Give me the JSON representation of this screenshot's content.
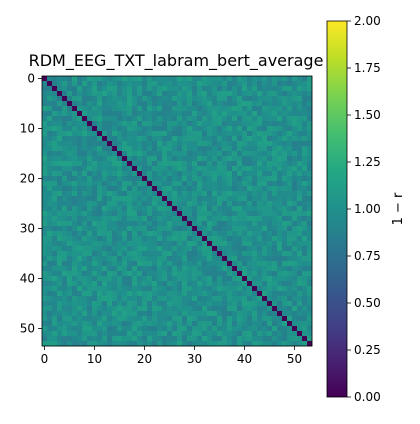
{
  "chart_data": {
    "type": "heatmap",
    "title": "RDM_EEG_TXT_labram_bert_average",
    "matrix_size": 54,
    "description_values": {
      "diagonal_value": 0.0,
      "off_diagonal_mean": 1.0,
      "off_diagonal_min": 0.85,
      "off_diagonal_max": 1.15
    },
    "x_ticks": [
      "0",
      "10",
      "20",
      "30",
      "40",
      "50"
    ],
    "y_ticks": [
      "0",
      "10",
      "20",
      "30",
      "40",
      "50"
    ],
    "tick_values": [
      0,
      10,
      20,
      30,
      40,
      50
    ],
    "colorbar": {
      "label": "1 − r",
      "range": [
        0.0,
        2.0
      ],
      "ticks": [
        "0.00",
        "0.25",
        "0.50",
        "0.75",
        "1.00",
        "1.25",
        "1.50",
        "1.75",
        "2.00"
      ],
      "tick_values": [
        0.0,
        0.25,
        0.5,
        0.75,
        1.0,
        1.25,
        1.5,
        1.75,
        2.0
      ],
      "colormap": "viridis"
    }
  }
}
